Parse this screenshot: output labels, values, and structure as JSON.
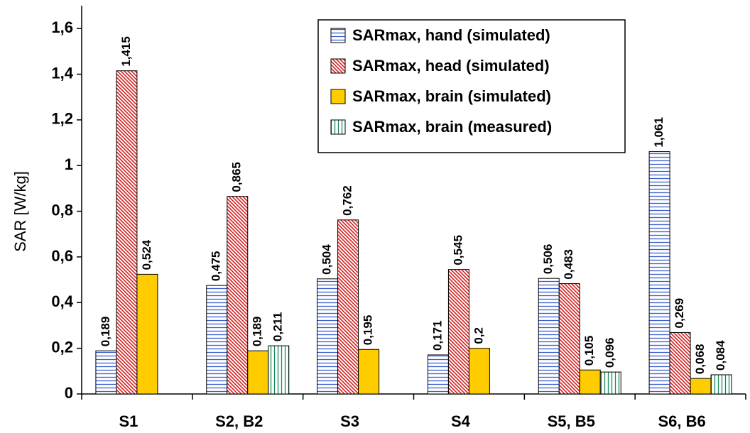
{
  "chart_data": {
    "type": "bar",
    "y_label": "SAR [W/kg]",
    "categories": [
      "S1",
      "S2, B2",
      "S3",
      "S4",
      "S5, B5",
      "S6, B6"
    ],
    "series": [
      {
        "name": "SARmax, hand (simulated)",
        "color": "#3a5fcd",
        "pattern": "horizontal",
        "values": [
          0.189,
          0.475,
          0.504,
          0.171,
          0.506,
          1.061
        ],
        "value_labels": [
          "0,189",
          "0,475",
          "0,504",
          "0,171",
          "0,506",
          "1,061"
        ]
      },
      {
        "name": "SARmax, head (simulated)",
        "color": "#d42020",
        "pattern": "diagonal",
        "values": [
          1.415,
          0.865,
          0.762,
          0.545,
          0.483,
          0.269
        ],
        "value_labels": [
          "1,415",
          "0,865",
          "0,762",
          "0,545",
          "0,483",
          "0,269"
        ]
      },
      {
        "name": "SARmax, brain (simulated)",
        "color": "#ffcc00",
        "pattern": "solid",
        "values": [
          0.524,
          0.189,
          0.195,
          0.2,
          0.105,
          0.068
        ],
        "value_labels": [
          "0,524",
          "0,189",
          "0,195",
          "0,2",
          "0,105",
          "0,068"
        ]
      },
      {
        "name": "SARmax, brain (measured)",
        "color": "#1a8a5a",
        "pattern": "vertical",
        "values": [
          null,
          0.211,
          null,
          null,
          0.096,
          0.084
        ],
        "value_labels": [
          null,
          "0,211",
          null,
          null,
          "0,096",
          "0,084"
        ]
      }
    ],
    "ylim": [
      0,
      1.7
    ],
    "yticks": [
      0,
      {
        "value": 0.2,
        "label": "0,2"
      },
      {
        "value": 0.4,
        "label": "0,4"
      },
      {
        "value": 0.6,
        "label": "0,6"
      },
      {
        "value": 0.8,
        "label": "0,8"
      },
      1,
      {
        "value": 1.2,
        "label": "1,2"
      },
      {
        "value": 1.4,
        "label": "1,4"
      },
      {
        "value": 1.6,
        "label": "1,6"
      }
    ],
    "grid": false,
    "legend": "top-right"
  }
}
